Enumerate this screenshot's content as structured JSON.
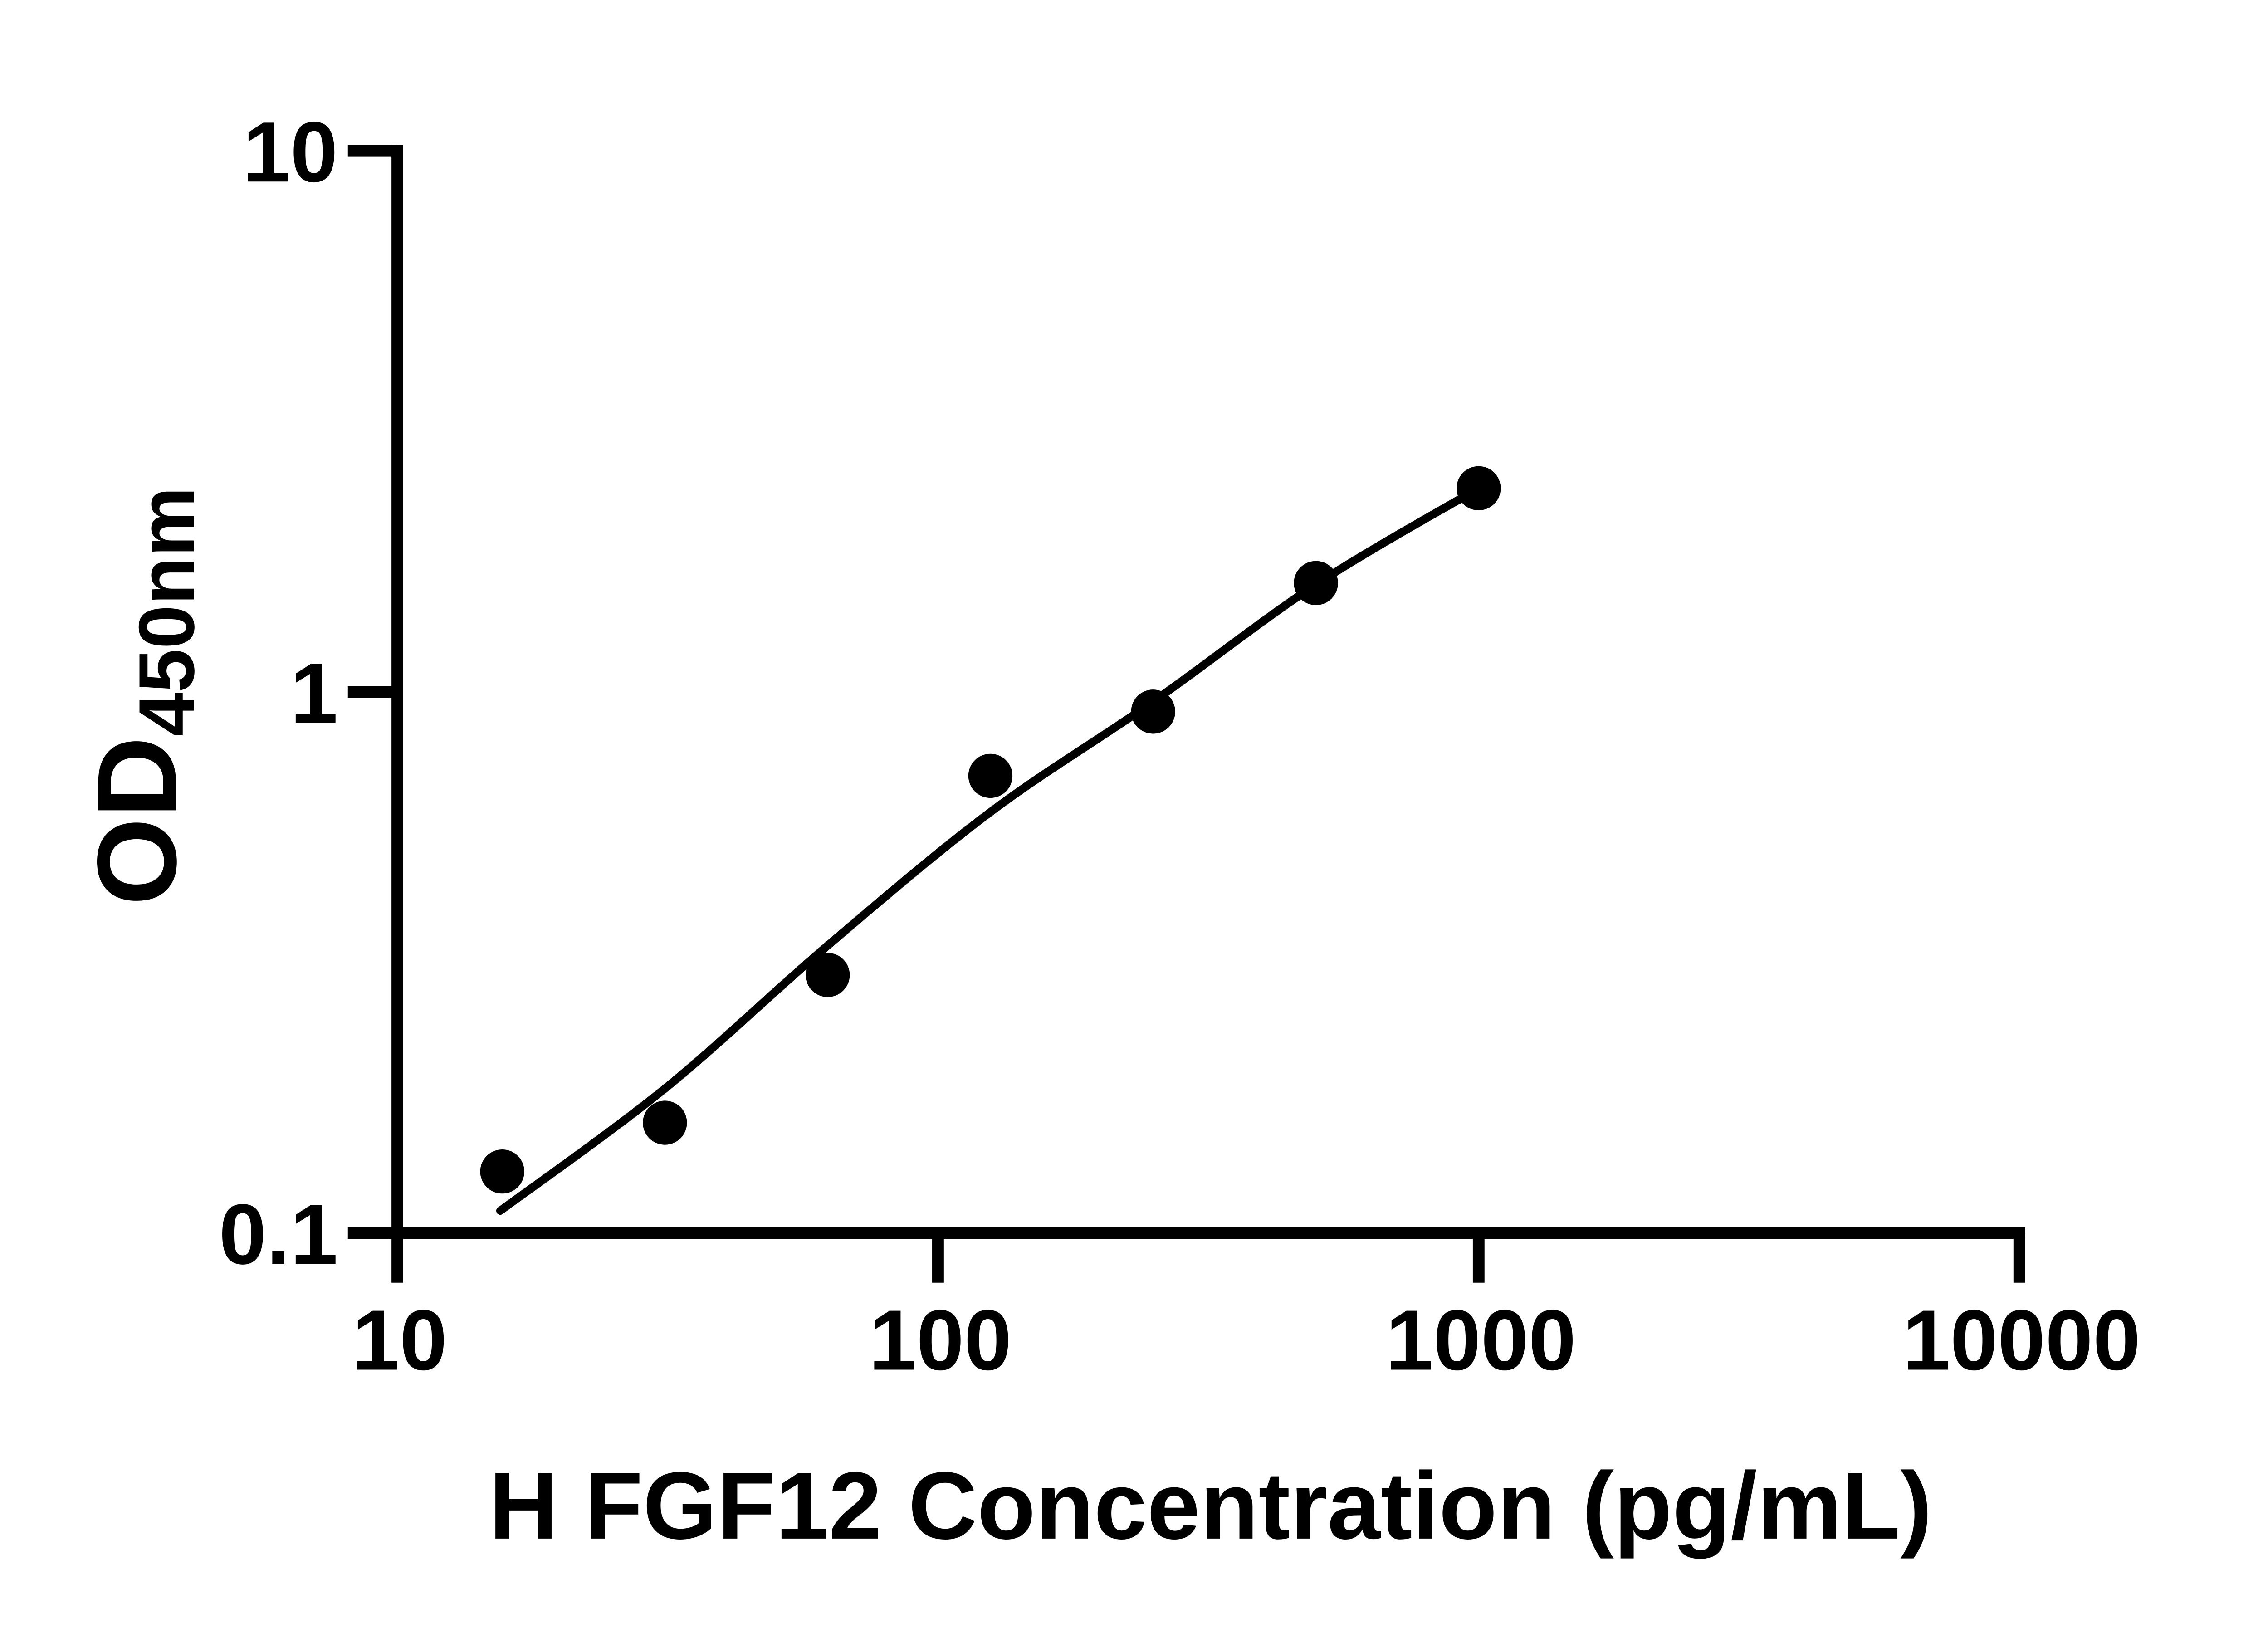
{
  "figure": {
    "background_color": "#ffffff",
    "ink_color": "#000000"
  },
  "chart_data": {
    "type": "scatter",
    "title": "",
    "xlabel": "H FGF12 Concentration (pg/mL)",
    "ylabel_main": "OD",
    "ylabel_sub": "450nm",
    "x_scale": "log",
    "y_scale": "log",
    "xlim": [
      10,
      10000
    ],
    "ylim": [
      0.1,
      10
    ],
    "grid": false,
    "legend_position": "none",
    "x_ticks": [
      {
        "value": 10,
        "label": "10"
      },
      {
        "value": 100,
        "label": "100"
      },
      {
        "value": 1000,
        "label": "1000"
      },
      {
        "value": 10000,
        "label": "10000"
      }
    ],
    "y_ticks": [
      {
        "value": 0.1,
        "label": "0.1"
      },
      {
        "value": 1,
        "label": "1"
      },
      {
        "value": 10,
        "label": "10"
      }
    ],
    "series": [
      {
        "marker": "filled-circle",
        "marker_color": "#000000",
        "x": [
          15.63,
          31.25,
          62.5,
          125,
          250,
          500,
          1000
        ],
        "y": [
          0.13,
          0.16,
          0.3,
          0.7,
          0.92,
          1.59,
          2.38
        ]
      }
    ],
    "fit_curve": {
      "style": "solid",
      "color": "#000000",
      "points": [
        [
          15.5,
          0.11
        ],
        [
          31.25,
          0.185
        ],
        [
          62.5,
          0.34
        ],
        [
          125,
          0.6
        ],
        [
          250,
          0.96
        ],
        [
          500,
          1.58
        ],
        [
          1000,
          2.38
        ]
      ]
    }
  }
}
